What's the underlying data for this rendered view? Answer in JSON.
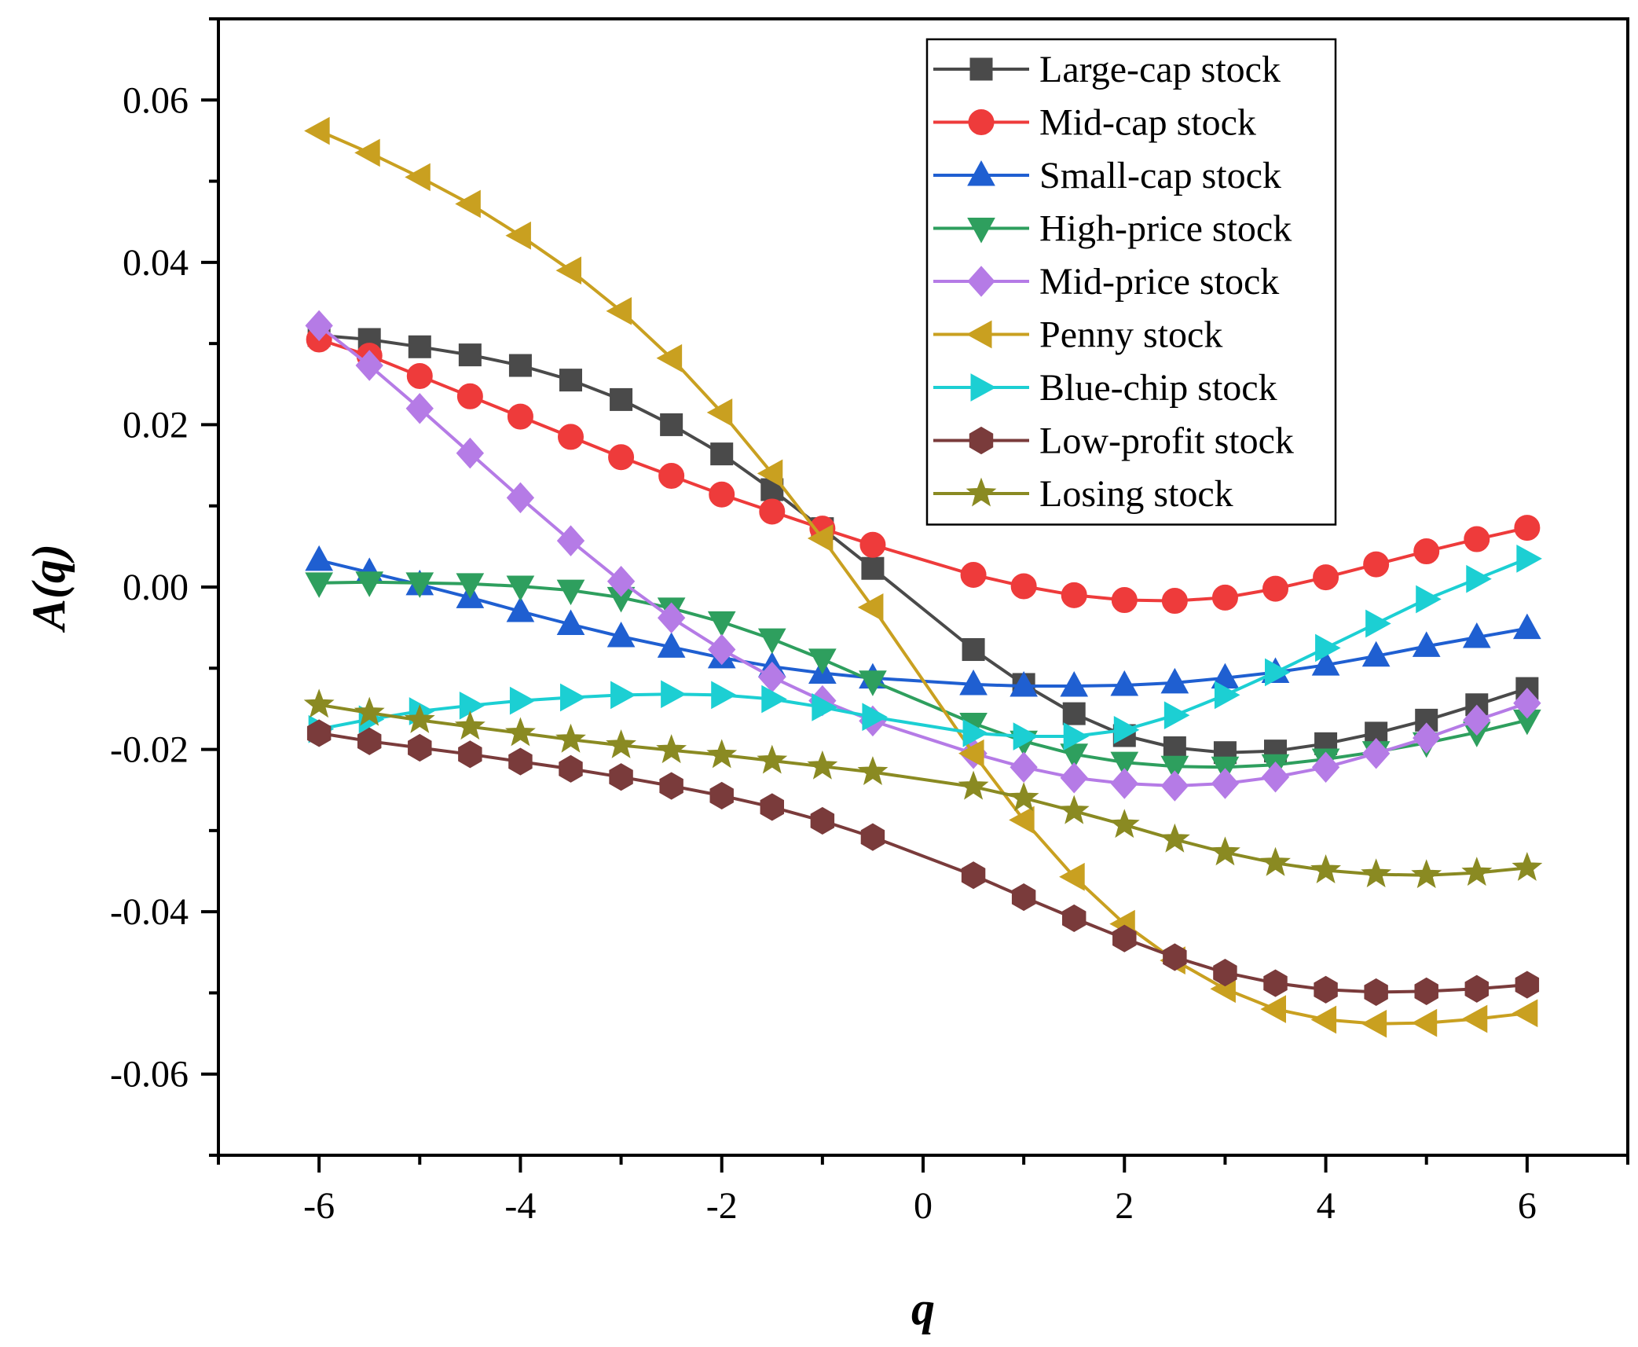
{
  "chart_data": {
    "type": "line",
    "title": "",
    "xlabel": "q",
    "ylabel": "A(q)",
    "xlim": [
      -7,
      7
    ],
    "ylim": [
      -0.07,
      0.07
    ],
    "x_ticks": [
      -6,
      -4,
      -2,
      0,
      2,
      4,
      6
    ],
    "y_ticks": [
      -0.06,
      -0.04,
      -0.02,
      0.0,
      0.02,
      0.04,
      0.06
    ],
    "x_tick_labels": [
      "-6",
      "-4",
      "-2",
      "0",
      "2",
      "4",
      "6"
    ],
    "y_tick_labels": [
      "-0.06",
      "-0.04",
      "-0.02",
      "0.00",
      "0.02",
      "0.04",
      "0.06"
    ],
    "grid": false,
    "legend_position": "top-right",
    "x": [
      -6,
      -5.5,
      -5,
      -4.5,
      -4,
      -3.5,
      -3,
      -2.5,
      -2,
      -1.5,
      -1,
      -0.5,
      0.5,
      1,
      1.5,
      2,
      2.5,
      3,
      3.5,
      4,
      4.5,
      5,
      5.5,
      6
    ],
    "series": [
      {
        "name": "Large-cap stock",
        "color": "#4a4a4a",
        "marker": "square",
        "values": [
          0.031,
          0.0305,
          0.0296,
          0.0286,
          0.0273,
          0.0255,
          0.0231,
          0.02,
          0.0164,
          0.012,
          0.0072,
          0.0023,
          -0.0077,
          -0.012,
          -0.0156,
          -0.0183,
          -0.0198,
          -0.0204,
          -0.0202,
          -0.0193,
          -0.018,
          -0.0164,
          -0.0145,
          -0.0125
        ]
      },
      {
        "name": "Mid-cap stock",
        "color": "#ee3b3b",
        "marker": "circle",
        "values": [
          0.0305,
          0.0285,
          0.026,
          0.0235,
          0.021,
          0.0185,
          0.016,
          0.0137,
          0.0114,
          0.0093,
          0.0072,
          0.0052,
          0.0015,
          0.0001,
          -0.001,
          -0.0016,
          -0.0017,
          -0.0013,
          -0.0002,
          0.0012,
          0.0028,
          0.0044,
          0.0059,
          0.0073
        ]
      },
      {
        "name": "Small-cap stock",
        "color": "#1f5fd1",
        "marker": "triangle-up",
        "values": [
          0.0033,
          0.0018,
          0.0003,
          -0.0013,
          -0.003,
          -0.0046,
          -0.0061,
          -0.0074,
          -0.0087,
          -0.0098,
          -0.0106,
          -0.0112,
          -0.012,
          -0.0122,
          -0.0122,
          -0.0121,
          -0.0118,
          -0.0112,
          -0.0105,
          -0.0096,
          -0.0085,
          -0.0073,
          -0.0062,
          -0.0051
        ]
      },
      {
        "name": "High-price stock",
        "color": "#2e9f5e",
        "marker": "triangle-down",
        "values": [
          0.0005,
          0.0006,
          0.0005,
          0.0004,
          0.0001,
          -0.0004,
          -0.0013,
          -0.0026,
          -0.0043,
          -0.0064,
          -0.0089,
          -0.0116,
          -0.0168,
          -0.019,
          -0.0206,
          -0.0216,
          -0.0221,
          -0.0222,
          -0.0219,
          -0.0212,
          -0.0203,
          -0.0192,
          -0.0179,
          -0.0164
        ]
      },
      {
        "name": "Mid-price stock",
        "color": "#b57be6",
        "marker": "diamond",
        "values": [
          0.0322,
          0.0273,
          0.022,
          0.0165,
          0.011,
          0.0057,
          0.0007,
          -0.0038,
          -0.0077,
          -0.0111,
          -0.014,
          -0.0165,
          -0.0205,
          -0.0222,
          -0.0235,
          -0.0242,
          -0.0245,
          -0.0242,
          -0.0234,
          -0.0222,
          -0.0205,
          -0.0186,
          -0.0164,
          -0.0143
        ]
      },
      {
        "name": "Penny stock",
        "color": "#c9a020",
        "marker": "triangle-left",
        "values": [
          0.0562,
          0.0535,
          0.0505,
          0.0472,
          0.0433,
          0.039,
          0.034,
          0.0282,
          0.0215,
          0.014,
          0.006,
          -0.0025,
          -0.0205,
          -0.0287,
          -0.0357,
          -0.0415,
          -0.046,
          -0.0495,
          -0.052,
          -0.0533,
          -0.0538,
          -0.0537,
          -0.0532,
          -0.0525
        ]
      },
      {
        "name": "Blue-chip stock",
        "color": "#1ccfd3",
        "marker": "triangle-right",
        "values": [
          -0.0175,
          -0.0163,
          -0.0153,
          -0.0146,
          -0.014,
          -0.0136,
          -0.0133,
          -0.0132,
          -0.0133,
          -0.0138,
          -0.0148,
          -0.016,
          -0.018,
          -0.0184,
          -0.0184,
          -0.0176,
          -0.0158,
          -0.0133,
          -0.0105,
          -0.0075,
          -0.0045,
          -0.0015,
          0.001,
          0.0035
        ]
      },
      {
        "name": "Low-profit stock",
        "color": "#7a3b3b",
        "marker": "hexagon",
        "values": [
          -0.018,
          -0.019,
          -0.0198,
          -0.0206,
          -0.0215,
          -0.0224,
          -0.0234,
          -0.0245,
          -0.0257,
          -0.0271,
          -0.0288,
          -0.0308,
          -0.0355,
          -0.0382,
          -0.0408,
          -0.0433,
          -0.0456,
          -0.0475,
          -0.0488,
          -0.0496,
          -0.0499,
          -0.0498,
          -0.0495,
          -0.049
        ]
      },
      {
        "name": "Losing stock",
        "color": "#8a8a22",
        "marker": "star",
        "values": [
          -0.0145,
          -0.0155,
          -0.0164,
          -0.0172,
          -0.018,
          -0.0188,
          -0.0195,
          -0.0201,
          -0.0207,
          -0.0214,
          -0.0221,
          -0.0228,
          -0.0246,
          -0.026,
          -0.0276,
          -0.0293,
          -0.0311,
          -0.0327,
          -0.034,
          -0.0349,
          -0.0354,
          -0.0355,
          -0.0352,
          -0.0346
        ]
      }
    ]
  }
}
